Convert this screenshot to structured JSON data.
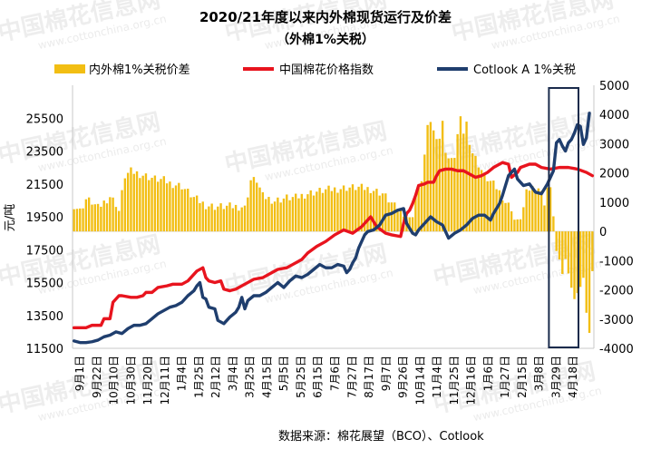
{
  "chart_data": {
    "type": "bar-line-combo",
    "title": "2020/21年度以来内外棉现货运行及价差",
    "subtitle": "（外棉1%关税）",
    "ylabel": "元/吨",
    "y2label": "",
    "ylim": [
      11500,
      27500
    ],
    "y2lim": [
      -4000,
      5000
    ],
    "yticks": [
      11500,
      13500,
      15500,
      17500,
      19500,
      21500,
      23500,
      25500
    ],
    "y2ticks": [
      -4000,
      -3000,
      -2000,
      -1000,
      0,
      1000,
      2000,
      3000,
      4000,
      5000
    ],
    "x_tick_labels": [
      "9月1日",
      "9月22日",
      "10月10日",
      "10月30日",
      "11月20日",
      "12月11日",
      "1月4日",
      "1月25日",
      "2月12日",
      "3月4日",
      "3月25日",
      "4月15日",
      "5月5日",
      "5月25日",
      "6月15日",
      "7月6日",
      "7月27日",
      "8月17日",
      "9月7日",
      "9月26日",
      "10月14日",
      "11月4日",
      "11月25日",
      "12月16日",
      "1月6日",
      "1月27日",
      "2月15日",
      "3月8日",
      "3月29日",
      "4月18日"
    ],
    "legend": [
      "内外棉1%关税价差",
      "中国棉花价格指数",
      "Cotlook A 1%关税"
    ],
    "legend_position": "top",
    "series": [
      {
        "name": "内外棉1%关税价差",
        "kind": "bar",
        "axis": "right",
        "color": "#F2BE13",
        "anchors": [
          [
            0,
            900
          ],
          [
            2,
            700
          ],
          [
            4,
            1100
          ],
          [
            6,
            1000
          ],
          [
            8,
            800
          ],
          [
            10,
            1000
          ],
          [
            12,
            1200
          ],
          [
            14,
            950
          ],
          [
            15,
            700
          ],
          [
            16,
            1300
          ],
          [
            17,
            1900
          ],
          [
            19,
            2050
          ],
          [
            21,
            2000
          ],
          [
            24,
            1900
          ],
          [
            27,
            1800
          ],
          [
            30,
            1750
          ],
          [
            32,
            1650
          ],
          [
            36,
            1550
          ],
          [
            40,
            1150
          ],
          [
            44,
            900
          ],
          [
            47,
            850
          ],
          [
            50,
            850
          ],
          [
            53,
            850
          ],
          [
            56,
            850
          ],
          [
            57,
            800
          ],
          [
            59,
            1750
          ],
          [
            61,
            1750
          ],
          [
            63,
            1200
          ],
          [
            67,
            1050
          ],
          [
            71,
            1150
          ],
          [
            74,
            1150
          ],
          [
            78,
            1300
          ],
          [
            83,
            1400
          ],
          [
            87,
            1450
          ],
          [
            91,
            1500
          ],
          [
            95,
            1500
          ],
          [
            99,
            1450
          ],
          [
            103,
            1300
          ],
          [
            107,
            850
          ],
          [
            110,
            650
          ],
          [
            112,
            400
          ],
          [
            113,
            600
          ],
          [
            114,
            1200
          ],
          [
            116,
            1800
          ],
          [
            117,
            2600
          ],
          [
            118,
            3500
          ],
          [
            119,
            3800
          ],
          [
            120,
            3400
          ],
          [
            122,
            3200
          ],
          [
            123,
            3700
          ],
          [
            124,
            2800
          ],
          [
            125,
            2500
          ],
          [
            126,
            2400
          ],
          [
            127,
            2600
          ],
          [
            128,
            3300
          ],
          [
            129,
            3800
          ],
          [
            130,
            3400
          ],
          [
            131,
            3700
          ],
          [
            132,
            3100
          ],
          [
            133,
            2700
          ],
          [
            134,
            2500
          ],
          [
            135,
            2300
          ],
          [
            136,
            2100
          ],
          [
            137,
            1900
          ],
          [
            139,
            1700
          ],
          [
            141,
            1500
          ],
          [
            143,
            1200
          ],
          [
            144,
            1000
          ],
          [
            146,
            800
          ],
          [
            147,
            400
          ],
          [
            148,
            300
          ],
          [
            149,
            500
          ],
          [
            150,
            800
          ],
          [
            151,
            1300
          ],
          [
            152,
            1450
          ],
          [
            153,
            1500
          ],
          [
            155,
            1500
          ],
          [
            156,
            1300
          ],
          [
            157,
            1000
          ],
          [
            158,
            1500
          ],
          [
            159,
            1400
          ],
          [
            160,
            600
          ],
          [
            161,
            -700
          ],
          [
            162,
            -1100
          ],
          [
            163,
            -1400
          ],
          [
            164,
            -1000
          ],
          [
            165,
            -1300
          ],
          [
            166,
            -1900
          ],
          [
            167,
            -2400
          ],
          [
            168,
            -2000
          ],
          [
            169,
            -1900
          ],
          [
            170,
            -1700
          ],
          [
            171,
            -2700
          ],
          [
            172,
            -3500
          ],
          [
            173,
            -1500
          ]
        ]
      },
      {
        "name": "中国棉花价格指数",
        "kind": "line",
        "axis": "left",
        "color": "#E8141E",
        "points": [
          [
            0,
            12750
          ],
          [
            4,
            12750
          ],
          [
            6,
            12900
          ],
          [
            9,
            12900
          ],
          [
            10,
            13300
          ],
          [
            12,
            13300
          ],
          [
            13,
            14300
          ],
          [
            15,
            14700
          ],
          [
            16,
            14700
          ],
          [
            19,
            14600
          ],
          [
            21,
            14600
          ],
          [
            23,
            14700
          ],
          [
            24,
            14900
          ],
          [
            26,
            14900
          ],
          [
            28,
            15200
          ],
          [
            31,
            15300
          ],
          [
            33,
            15400
          ],
          [
            36,
            15400
          ],
          [
            38,
            15600
          ],
          [
            41,
            16200
          ],
          [
            43,
            16400
          ],
          [
            44,
            15800
          ],
          [
            45,
            15600
          ],
          [
            47,
            15500
          ],
          [
            49,
            15600
          ],
          [
            50,
            15100
          ],
          [
            52,
            15000
          ],
          [
            54,
            15100
          ],
          [
            57,
            15400
          ],
          [
            60,
            15700
          ],
          [
            63,
            15800
          ],
          [
            66,
            16100
          ],
          [
            68,
            16300
          ],
          [
            71,
            16400
          ],
          [
            73,
            16600
          ],
          [
            76,
            16900
          ],
          [
            78,
            17300
          ],
          [
            81,
            17700
          ],
          [
            84,
            18000
          ],
          [
            87,
            18400
          ],
          [
            90,
            18700
          ],
          [
            93,
            18500
          ],
          [
            96,
            18900
          ],
          [
            99,
            19500
          ],
          [
            101,
            18900
          ],
          [
            104,
            18500
          ],
          [
            106,
            18400
          ],
          [
            109,
            18300
          ],
          [
            110,
            19100
          ],
          [
            111,
            19700
          ],
          [
            112,
            19900
          ],
          [
            113,
            20300
          ],
          [
            114,
            20800
          ],
          [
            115,
            21400
          ],
          [
            117,
            21500
          ],
          [
            118,
            21600
          ],
          [
            120,
            21600
          ],
          [
            121,
            22000
          ],
          [
            122,
            22300
          ],
          [
            124,
            22400
          ],
          [
            126,
            22400
          ],
          [
            128,
            22300
          ],
          [
            130,
            22300
          ],
          [
            132,
            22100
          ],
          [
            134,
            21900
          ],
          [
            136,
            22000
          ],
          [
            138,
            22200
          ],
          [
            140,
            22500
          ],
          [
            143,
            22800
          ],
          [
            145,
            22700
          ],
          [
            146,
            21900
          ],
          [
            148,
            22200
          ],
          [
            149,
            22500
          ],
          [
            152,
            22700
          ],
          [
            154,
            22700
          ],
          [
            156,
            22500
          ],
          [
            159,
            22400
          ],
          [
            162,
            22500
          ],
          [
            165,
            22500
          ],
          [
            168,
            22400
          ],
          [
            171,
            22200
          ],
          [
            173,
            22000
          ]
        ],
        "gaps_after": [
          147
        ]
      },
      {
        "name": "Cotlook A 1%关税",
        "kind": "line",
        "axis": "left",
        "color": "#1F3E6E",
        "points": [
          [
            0,
            11950
          ],
          [
            2,
            11850
          ],
          [
            4,
            11850
          ],
          [
            6,
            11900
          ],
          [
            8,
            12000
          ],
          [
            10,
            12200
          ],
          [
            12,
            12300
          ],
          [
            14,
            12500
          ],
          [
            16,
            12400
          ],
          [
            18,
            12700
          ],
          [
            20,
            12900
          ],
          [
            22,
            12900
          ],
          [
            24,
            13000
          ],
          [
            26,
            13300
          ],
          [
            28,
            13600
          ],
          [
            30,
            13800
          ],
          [
            32,
            14000
          ],
          [
            34,
            14100
          ],
          [
            36,
            14300
          ],
          [
            38,
            14700
          ],
          [
            40,
            15000
          ],
          [
            41,
            15300
          ],
          [
            42,
            15500
          ],
          [
            43,
            14600
          ],
          [
            44,
            14500
          ],
          [
            45,
            14000
          ],
          [
            47,
            13900
          ],
          [
            48,
            13200
          ],
          [
            50,
            13000
          ],
          [
            52,
            13400
          ],
          [
            54,
            13700
          ],
          [
            55,
            14000
          ],
          [
            56,
            14600
          ],
          [
            57,
            13900
          ],
          [
            58,
            14400
          ],
          [
            60,
            14700
          ],
          [
            62,
            14700
          ],
          [
            64,
            14900
          ],
          [
            66,
            15200
          ],
          [
            68,
            15500
          ],
          [
            70,
            15200
          ],
          [
            72,
            15600
          ],
          [
            74,
            15900
          ],
          [
            76,
            15800
          ],
          [
            78,
            16000
          ],
          [
            80,
            16300
          ],
          [
            82,
            16600
          ],
          [
            84,
            16400
          ],
          [
            86,
            16400
          ],
          [
            88,
            16600
          ],
          [
            90,
            16500
          ],
          [
            91,
            16100
          ],
          [
            92,
            16300
          ],
          [
            93,
            16700
          ],
          [
            94,
            17000
          ],
          [
            95,
            17600
          ],
          [
            96,
            18000
          ],
          [
            97,
            18400
          ],
          [
            98,
            18600
          ],
          [
            100,
            18700
          ],
          [
            102,
            19000
          ],
          [
            104,
            19600
          ],
          [
            106,
            19700
          ],
          [
            108,
            19900
          ],
          [
            110,
            20000
          ],
          [
            111,
            19100
          ],
          [
            113,
            18500
          ],
          [
            114,
            18400
          ],
          [
            115,
            18700
          ],
          [
            117,
            19100
          ],
          [
            119,
            19500
          ],
          [
            121,
            19200
          ],
          [
            123,
            19000
          ],
          [
            125,
            18200
          ],
          [
            127,
            18500
          ],
          [
            129,
            18700
          ],
          [
            131,
            19000
          ],
          [
            133,
            19400
          ],
          [
            135,
            19600
          ],
          [
            137,
            19600
          ],
          [
            139,
            19300
          ],
          [
            140,
            19700
          ],
          [
            142,
            20300
          ],
          [
            143,
            20800
          ],
          [
            144,
            21400
          ],
          [
            145,
            22000
          ],
          [
            147,
            22400
          ],
          [
            148,
            21800
          ],
          [
            150,
            21400
          ],
          [
            152,
            21500
          ],
          [
            154,
            21000
          ],
          [
            156,
            20900
          ],
          [
            158,
            21500
          ],
          [
            160,
            22300
          ],
          [
            161,
            24000
          ],
          [
            162,
            24200
          ],
          [
            163,
            23800
          ],
          [
            164,
            23500
          ],
          [
            165,
            24000
          ],
          [
            166,
            24200
          ],
          [
            167,
            24600
          ],
          [
            168,
            25100
          ],
          [
            169,
            25000
          ],
          [
            170,
            23900
          ],
          [
            171,
            24300
          ],
          [
            172,
            25800
          ]
        ]
      }
    ],
    "annotations": {
      "highlight_box": {
        "x_from": 159,
        "x_to": 174
      }
    }
  },
  "source": "数据来源：棉花展望（BCO）、Cotlook",
  "watermark": {
    "text": "中国棉花信息网",
    "url": "www.cottonchina.org.cn"
  }
}
